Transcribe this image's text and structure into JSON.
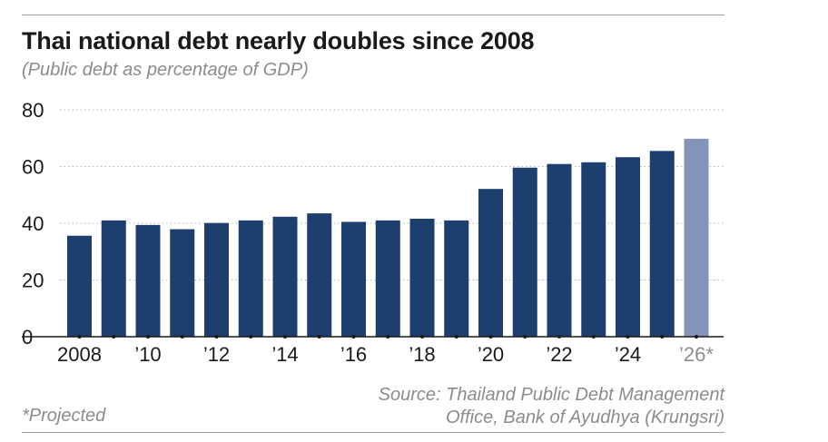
{
  "chart_data": {
    "type": "bar",
    "title": "Thai national debt nearly doubles since 2008",
    "subtitle": "(Public debt as percentage of GDP)",
    "xlabel": "",
    "ylabel": "",
    "ylim": [
      0,
      80
    ],
    "yticks": [
      "0",
      "20",
      "40",
      "60",
      "80"
    ],
    "grid": true,
    "categories": [
      "2008",
      "2009",
      "2010",
      "2011",
      "2012",
      "2013",
      "2014",
      "2015",
      "2016",
      "2017",
      "2018",
      "2019",
      "2020",
      "2021",
      "2022",
      "2023",
      "2024",
      "2025",
      "2026"
    ],
    "xtick_labels": [
      "2008",
      "",
      "’10",
      "",
      "’12",
      "",
      "’14",
      "",
      "’16",
      "",
      "’18",
      "",
      "’20",
      "",
      "’22",
      "",
      "’24",
      "",
      "’26*"
    ],
    "values": [
      35.6,
      41.0,
      39.4,
      37.9,
      40.1,
      41.0,
      42.3,
      43.5,
      40.5,
      41.0,
      41.6,
      41.0,
      52.1,
      59.6,
      60.9,
      61.5,
      63.3,
      65.5,
      69.8
    ],
    "projected": [
      false,
      false,
      false,
      false,
      false,
      false,
      false,
      false,
      false,
      false,
      false,
      false,
      false,
      false,
      false,
      false,
      false,
      false,
      true
    ],
    "colors": {
      "actual": "#1c3f6e",
      "projected": "#8494b8",
      "grid": "#b5b5b5",
      "axis": "#1a1a1a",
      "tick_projected": "#8c8c8c"
    }
  },
  "footnote": "*Projected",
  "source": {
    "line1": "Source: Thailand Public Debt Management",
    "line2": "Office, Bank of Ayudhya (Krungsri)"
  }
}
